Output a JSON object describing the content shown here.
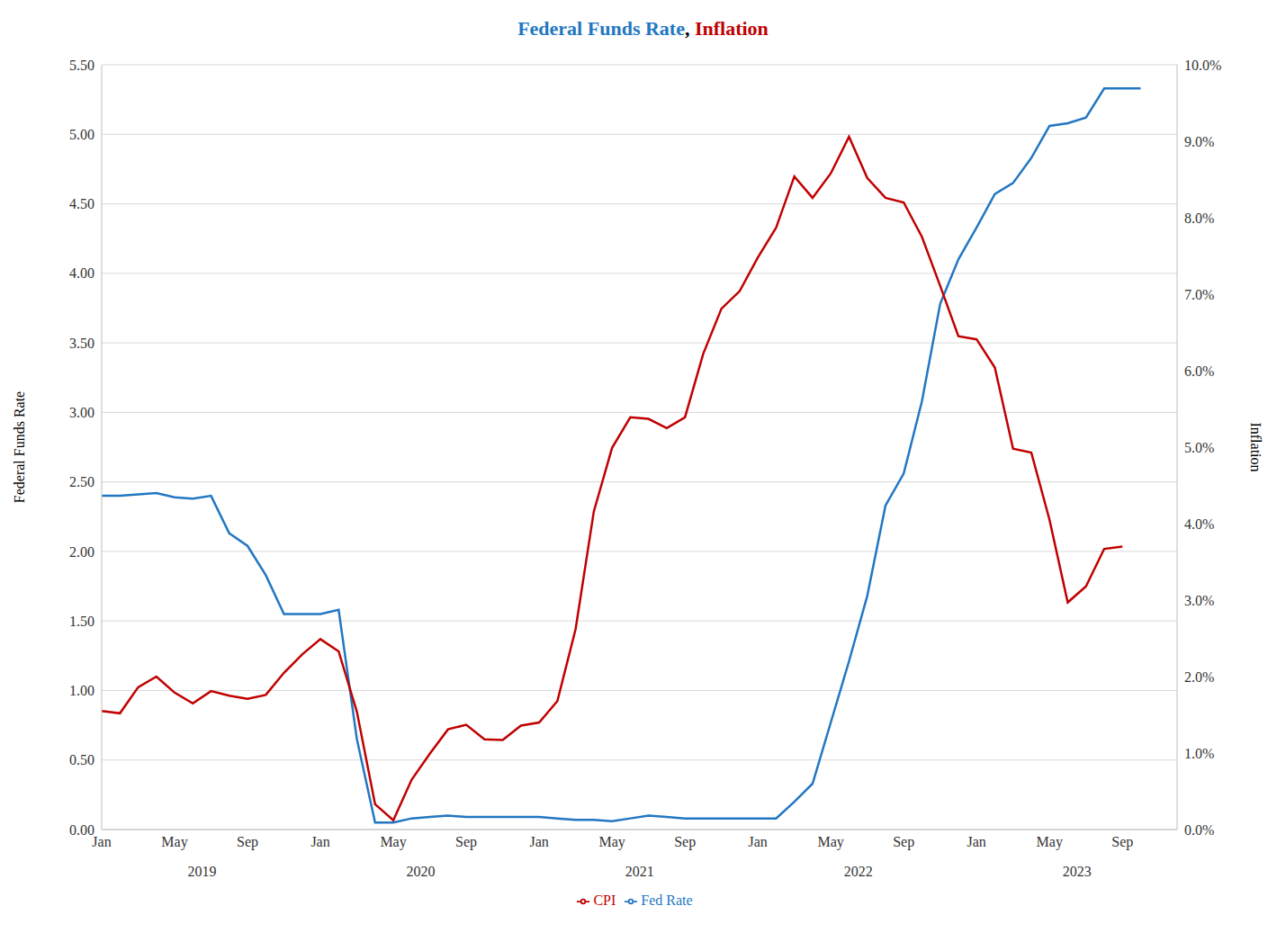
{
  "chart_data": {
    "type": "line",
    "title_parts": [
      {
        "text": "Federal Funds Rate",
        "color": "#2277c2"
      },
      {
        "text": ", ",
        "color": "#000000"
      },
      {
        "text": "Inflation",
        "color": "#c00000"
      }
    ],
    "y_label": "Federal Funds Rate",
    "y2_label": "Inflation",
    "categories": [
      "Jan",
      null,
      null,
      null,
      "May",
      null,
      null,
      null,
      "Sep",
      null,
      null,
      null,
      "Jan",
      null,
      null,
      null,
      "May",
      null,
      null,
      null,
      "Sep",
      null,
      null,
      null,
      "Jan",
      null,
      null,
      null,
      "May",
      null,
      null,
      null,
      "Sep",
      null,
      null,
      null,
      "Jan",
      null,
      null,
      null,
      "May",
      null,
      null,
      null,
      "Sep",
      null,
      null,
      null,
      "Jan",
      null,
      null,
      null,
      "May",
      null,
      null,
      null,
      "Sep",
      null,
      null,
      null
    ],
    "x_groups": [
      "2019",
      "2020",
      "2021",
      "2022",
      "2023"
    ],
    "series": [
      {
        "name": "Fed Rate",
        "color": "#2277c2",
        "values": [
          2.4,
          2.4,
          2.41,
          2.42,
          2.39,
          2.38,
          2.4,
          2.13,
          2.04,
          1.83,
          1.55,
          1.55,
          1.55,
          1.58,
          0.65,
          0.05,
          0.05,
          0.08,
          0.09,
          0.1,
          0.09,
          0.09,
          0.09,
          0.09,
          0.09,
          0.08,
          0.07,
          0.07,
          0.06,
          0.08,
          0.1,
          0.09,
          0.08,
          0.08,
          0.08,
          0.08,
          0.08,
          0.08,
          0.2,
          0.33,
          0.77,
          1.21,
          1.68,
          2.33,
          2.56,
          3.08,
          3.78,
          4.1,
          4.33,
          4.57,
          4.65,
          4.83,
          5.06,
          5.08,
          5.12,
          5.33,
          5.33,
          5.33,
          null,
          null
        ]
      },
      {
        "name": "CPI",
        "color": "#c00000",
        "axis": "y2",
        "values": [
          1.55,
          1.52,
          1.86,
          2.0,
          1.79,
          1.65,
          1.81,
          1.75,
          1.71,
          1.76,
          2.05,
          2.29,
          2.49,
          2.33,
          1.54,
          0.33,
          0.12,
          0.65,
          0.99,
          1.31,
          1.37,
          1.18,
          1.17,
          1.36,
          1.4,
          1.68,
          2.62,
          4.16,
          4.99,
          5.39,
          5.37,
          5.25,
          5.39,
          6.22,
          6.81,
          7.04,
          7.48,
          7.87,
          8.54,
          8.26,
          8.58,
          9.06,
          8.52,
          8.26,
          8.2,
          7.75,
          7.11,
          6.45,
          6.41,
          6.04,
          4.98,
          4.93,
          4.05,
          2.97,
          3.18,
          3.67,
          3.7,
          null,
          null,
          null
        ]
      }
    ],
    "ylim": [
      0,
      5.5
    ],
    "yticks": [
      {
        "value": 0,
        "label": "0.00"
      },
      {
        "value": 0.5,
        "label": "0.50"
      },
      {
        "value": 1,
        "label": "1.00"
      },
      {
        "value": 1.5,
        "label": "1.50"
      },
      {
        "value": 2,
        "label": "2.00"
      },
      {
        "value": 2.5,
        "label": "2.50"
      },
      {
        "value": 3,
        "label": "3.00"
      },
      {
        "value": 3.5,
        "label": "3.50"
      },
      {
        "value": 4,
        "label": "4.00"
      },
      {
        "value": 4.5,
        "label": "4.50"
      },
      {
        "value": 5,
        "label": "5.00"
      },
      {
        "value": 5.5,
        "label": "5.50"
      }
    ],
    "y2lim": [
      0,
      10
    ],
    "y2ticks": [
      {
        "value": 0,
        "label": "0.0%"
      },
      {
        "value": 1,
        "label": "1.0%"
      },
      {
        "value": 2,
        "label": "2.0%"
      },
      {
        "value": 3,
        "label": "3.0%"
      },
      {
        "value": 4,
        "label": "4.0%"
      },
      {
        "value": 5,
        "label": "5.0%"
      },
      {
        "value": 6,
        "label": "6.0%"
      },
      {
        "value": 7,
        "label": "7.0%"
      },
      {
        "value": 8,
        "label": "8.0%"
      },
      {
        "value": 9,
        "label": "9.0%"
      },
      {
        "value": 10,
        "label": "10.0%"
      }
    ],
    "grid": true,
    "legend": "bottom"
  }
}
